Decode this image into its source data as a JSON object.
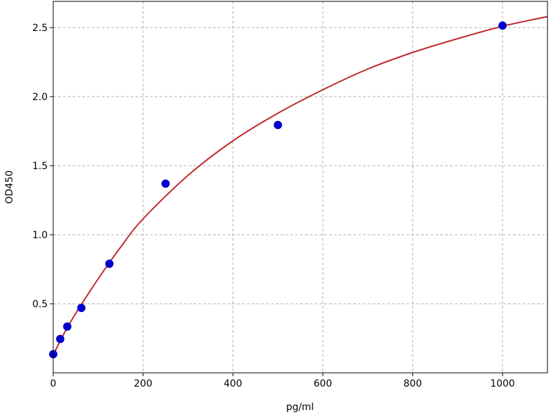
{
  "chart_data": {
    "type": "scatter",
    "title": "",
    "xlabel": "pg/ml",
    "ylabel": "OD450",
    "xlim": [
      0,
      1100
    ],
    "ylim": [
      0,
      2.69
    ],
    "grid": true,
    "x_ticks": [
      0,
      200,
      400,
      600,
      800,
      1000
    ],
    "y_ticks": [
      0.5,
      1.0,
      1.5,
      2.0,
      2.5
    ],
    "y_tick_labels": [
      "0.5",
      "1.0",
      "1.5",
      "2.0",
      "2.5"
    ],
    "points": {
      "color": "#0000cc",
      "x": [
        0,
        15.6,
        31.25,
        62.5,
        125,
        250,
        500,
        1000
      ],
      "y": [
        0.135,
        0.245,
        0.335,
        0.47,
        0.79,
        1.37,
        1.795,
        2.515
      ]
    },
    "fit_curve": {
      "color": "#c0282d",
      "x": [
        0,
        25,
        50,
        100,
        150,
        200,
        300,
        400,
        500,
        600,
        700,
        800,
        900,
        1000,
        1100
      ],
      "y": [
        0.13,
        0.29,
        0.43,
        0.68,
        0.91,
        1.115,
        1.43,
        1.68,
        1.88,
        2.05,
        2.2,
        2.32,
        2.42,
        2.51,
        2.58
      ]
    }
  }
}
